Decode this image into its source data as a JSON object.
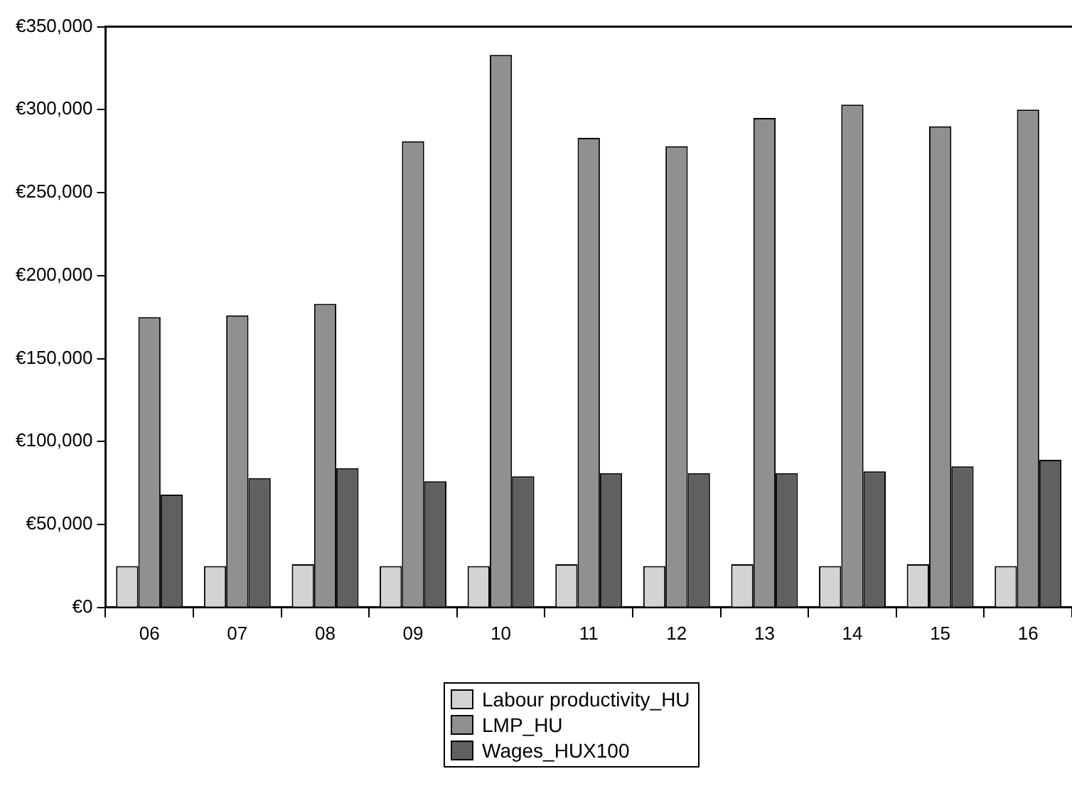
{
  "chart_data": {
    "type": "bar",
    "categories": [
      "06",
      "07",
      "08",
      "09",
      "10",
      "11",
      "12",
      "13",
      "14",
      "15",
      "16"
    ],
    "series": [
      {
        "name": "Labour productivity_HU",
        "color": "#d3d3d3",
        "values": [
          25000,
          25000,
          26000,
          25000,
          25000,
          26000,
          25000,
          26000,
          25000,
          26000,
          25000
        ]
      },
      {
        "name": "LMP_HU",
        "color": "#909090",
        "values": [
          175000,
          176000,
          183000,
          281000,
          333000,
          283000,
          278000,
          295000,
          303000,
          290000,
          300000
        ]
      },
      {
        "name": "Wages_HUX100",
        "color": "#606060",
        "values": [
          68000,
          78000,
          84000,
          76000,
          79000,
          81000,
          81000,
          81000,
          82000,
          85000,
          89000
        ]
      }
    ],
    "ylim": [
      0,
      350000
    ],
    "yticks": [
      {
        "value": 0,
        "label": "€0"
      },
      {
        "value": 50000,
        "label": "€50,000"
      },
      {
        "value": 100000,
        "label": "€100,000"
      },
      {
        "value": 150000,
        "label": "€150,000"
      },
      {
        "value": 200000,
        "label": "€200,000"
      },
      {
        "value": 250000,
        "label": "€250,000"
      },
      {
        "value": 300000,
        "label": "€300,000"
      },
      {
        "value": 350000,
        "label": "€350,000"
      }
    ],
    "grid": false,
    "legend": "bottom"
  }
}
